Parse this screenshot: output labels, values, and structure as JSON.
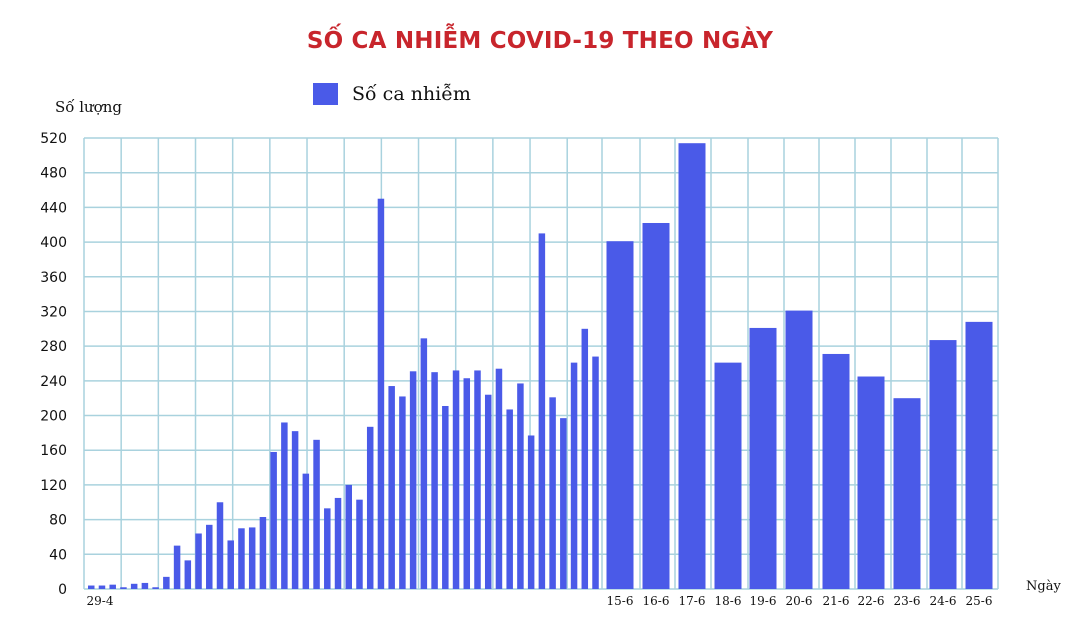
{
  "chart_data": {
    "type": "bar",
    "title": "SỐ CA NHIỄM COVID-19 THEO NGÀY",
    "ylabel": "Số lượng",
    "xlabel": "Ngày",
    "ylim": [
      0,
      520
    ],
    "yticks": [
      0,
      40,
      80,
      120,
      160,
      200,
      240,
      280,
      320,
      360,
      400,
      440,
      480,
      520
    ],
    "grid": true,
    "legend_position": "top-left",
    "bar_color": "#4a5ae8",
    "grid_color": "#a9d2de",
    "series": [
      {
        "name": "Số ca nhiễm",
        "values": [
          4,
          4,
          5,
          2,
          6,
          7,
          2,
          14,
          50,
          33,
          64,
          74,
          100,
          56,
          70,
          71,
          83,
          158,
          192,
          182,
          133,
          172,
          93,
          105,
          120,
          103,
          187,
          450,
          234,
          222,
          251,
          289,
          250,
          211,
          252,
          243,
          252,
          224,
          254,
          207,
          237,
          177,
          410,
          221,
          197,
          261,
          300,
          268,
          401,
          422,
          514,
          261,
          301,
          321,
          271,
          245,
          220,
          287,
          308
        ]
      }
    ],
    "tick_labels": [
      {
        "label": "29-4",
        "index": 0
      },
      {
        "label": "15-6",
        "index": 48
      },
      {
        "label": "16-6",
        "index": 49
      },
      {
        "label": "17-6",
        "index": 50
      },
      {
        "label": "18-6",
        "index": 51
      },
      {
        "label": "19-6",
        "index": 52
      },
      {
        "label": "20-6",
        "index": 53
      },
      {
        "label": "21-6",
        "index": 54
      },
      {
        "label": "22-6",
        "index": 55
      },
      {
        "label": "23-6",
        "index": 56
      },
      {
        "label": "24-6",
        "index": 57
      },
      {
        "label": "25-6",
        "index": 58
      }
    ]
  }
}
